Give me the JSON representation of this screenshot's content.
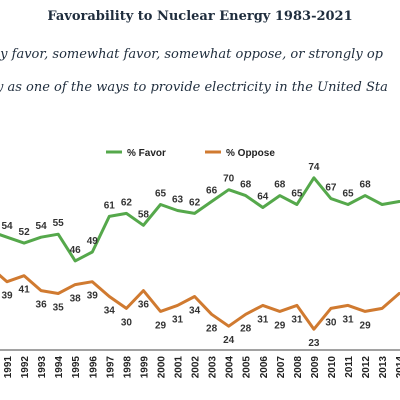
{
  "header": {
    "title": "Favorability to Nuclear Energy 1983-2021",
    "subtitle_line1": "ly favor, somewhat favor, somewhat oppose, or strongly op",
    "subtitle_line2": "y as one of the ways to provide electricity in the United Sta"
  },
  "chart_data": {
    "type": "line",
    "title": "Favorability to Nuclear Energy 1983-2021",
    "x": [
      "1991",
      "1992",
      "1993",
      "1994",
      "1995",
      "1996",
      "1997",
      "1998",
      "1999",
      "2000",
      "2001",
      "2002",
      "2003",
      "2004",
      "2005",
      "2006",
      "2007",
      "2008",
      "2009",
      "2010",
      "2011",
      "2012",
      "2013",
      "2014"
    ],
    "series": [
      {
        "name": "% Favor",
        "color": "#55a84b",
        "values": [
          54,
          52,
          54,
          55,
          46,
          49,
          61,
          62,
          58,
          65,
          63,
          62,
          66,
          70,
          68,
          64,
          68,
          65,
          74,
          67,
          65,
          68,
          65,
          66
        ]
      },
      {
        "name": "% Oppose",
        "color": "#d07a30",
        "values": [
          39,
          41,
          36,
          35,
          38,
          39,
          34,
          30,
          36,
          29,
          31,
          34,
          28,
          24,
          28,
          31,
          29,
          31,
          23,
          30,
          31,
          29,
          30,
          35
        ]
      }
    ],
    "labels": {
      "favor": [
        "54",
        "52",
        "54",
        "55",
        "46",
        "49",
        "61",
        "62",
        "58",
        "65",
        "63",
        "62",
        "66",
        "70",
        "68",
        "64",
        "68",
        "65",
        "74",
        "67",
        "65",
        "68",
        null,
        null
      ],
      "oppose": [
        "39",
        "41",
        "36",
        "35",
        "38",
        "39",
        "34",
        "30",
        "36",
        "29",
        "31",
        "34",
        "28",
        "24",
        "28",
        "31",
        "29",
        "31",
        "23",
        "30",
        "31",
        "29",
        null,
        null
      ]
    },
    "partial": {
      "favor_line_start": 56,
      "oppose_line_start": 44
    },
    "xlabel": "",
    "ylabel": "",
    "ylim": [
      18,
      80
    ],
    "grid": false,
    "legend": "top-center"
  }
}
